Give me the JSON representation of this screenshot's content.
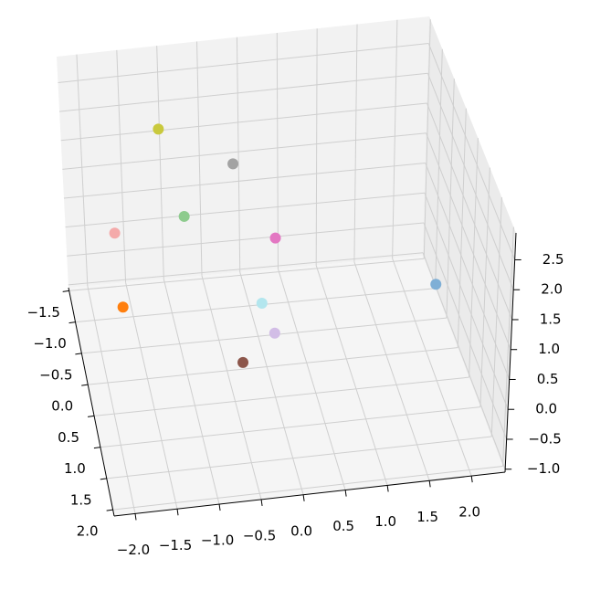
{
  "chart_data": {
    "type": "scatter3d",
    "xlim": [
      -2.25,
      2.4
    ],
    "ylim": [
      -1.55,
      2.1
    ],
    "zlim": [
      -1.05,
      2.95
    ],
    "xticks": [
      {
        "value": -2.0,
        "label": "−2.0"
      },
      {
        "value": -1.5,
        "label": "−1.5"
      },
      {
        "value": -1.0,
        "label": "−1.0"
      },
      {
        "value": -0.5,
        "label": "−0.5"
      },
      {
        "value": 0.0,
        "label": "0.0"
      },
      {
        "value": 0.5,
        "label": "0.5"
      },
      {
        "value": 1.0,
        "label": "1.0"
      },
      {
        "value": 1.5,
        "label": "1.5"
      },
      {
        "value": 2.0,
        "label": "2.0"
      }
    ],
    "yticks": [
      {
        "value": -1.5,
        "label": "−1.5"
      },
      {
        "value": -1.0,
        "label": "−1.0"
      },
      {
        "value": -0.5,
        "label": "−0.5"
      },
      {
        "value": 0.0,
        "label": "0.0"
      },
      {
        "value": 0.5,
        "label": "0.5"
      },
      {
        "value": 1.0,
        "label": "1.0"
      },
      {
        "value": 1.5,
        "label": "1.5"
      },
      {
        "value": 2.0,
        "label": "2.0"
      }
    ],
    "zticks": [
      {
        "value": -1.0,
        "label": "−1.0"
      },
      {
        "value": -0.5,
        "label": "−0.5"
      },
      {
        "value": 0.0,
        "label": "0.0"
      },
      {
        "value": 0.5,
        "label": "0.5"
      },
      {
        "value": 1.0,
        "label": "1.0"
      },
      {
        "value": 1.5,
        "label": "1.5"
      },
      {
        "value": 2.0,
        "label": "2.0"
      },
      {
        "value": 2.5,
        "label": "2.5"
      }
    ],
    "grid": true,
    "x": [
      2.1,
      -2.0,
      -1.0,
      -1.7,
      0.1,
      -0.5,
      0.0,
      -0.4,
      -1.2,
      0.05
    ],
    "y": [
      0.0,
      1.5,
      0.0,
      -1.0,
      0.0,
      1.0,
      0.5,
      0.0,
      -0.5,
      -0.5
    ],
    "z": [
      0.05,
      1.7,
      1.6,
      0.4,
      -0.5,
      0.1,
      1.6,
      2.4,
      2.6,
      -0.5
    ],
    "colors": [
      "#7fafd6",
      "#ff7f0e",
      "#8ecb8e",
      "#f4aaaa",
      "#d2bde6",
      "#8c564b",
      "#e377c2",
      "#a3a3a3",
      "#c9c93d",
      "#b3e6ee"
    ]
  }
}
